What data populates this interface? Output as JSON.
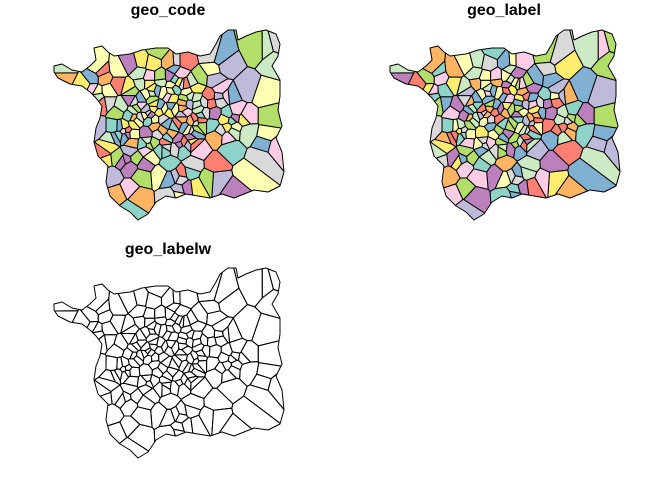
{
  "panels": [
    {
      "title": "geo_code",
      "fill_mode": "palette",
      "palette_offset": 0
    },
    {
      "title": "geo_label",
      "fill_mode": "palette",
      "palette_offset": 3
    },
    {
      "title": "geo_labelw",
      "fill_mode": "none",
      "palette_offset": 0
    }
  ],
  "palette": [
    "#8DD3C7",
    "#FFFFB3",
    "#BEBADA",
    "#FB8072",
    "#80B1D3",
    "#FDB462",
    "#B3DE69",
    "#FCCDE5",
    "#D9D9D9",
    "#BC80BD",
    "#CCEBC5",
    "#FFED6F"
  ],
  "colors": {
    "outline": "#000000",
    "background": "#ffffff",
    "empty_fill": "none"
  }
}
